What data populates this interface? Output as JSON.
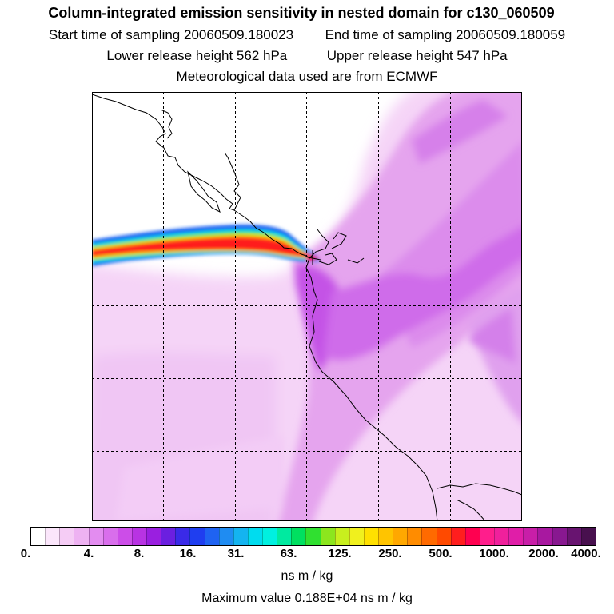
{
  "header": {
    "title": "Column-integrated emission sensitivity in nested domain for c130_060509",
    "start_label": "Start time of sampling",
    "start_value": "20060509.180023",
    "end_label": "End time of sampling",
    "end_value": "20060509.180059",
    "lower_label": "Lower release height",
    "lower_value": "562 hPa",
    "upper_label": "Upper release height",
    "upper_value": "547 hPa",
    "met_line": "Meteorological data used are from ECMWF"
  },
  "legend": {
    "tick_labels": [
      "0.",
      "4.",
      "8.",
      "16.",
      "31.",
      "63.",
      "125.",
      "250.",
      "500.",
      "1000.",
      "2000.",
      "4000."
    ],
    "units": "ns m / kg",
    "max_label": "Maximum value",
    "max_value": "0.188E+04 ns m / kg"
  },
  "colors": {
    "scale": [
      "#ffffff",
      "#fbe6fb",
      "#f5ccf5",
      "#eeb2f2",
      "#e38cf0",
      "#d96eec",
      "#cc4de8",
      "#b833e3",
      "#9a1fe0",
      "#6b1fe0",
      "#3a2ae8",
      "#1f3ef0",
      "#1f63f2",
      "#1f8cf2",
      "#14b4f0",
      "#00dcef",
      "#00f0e0",
      "#00eaa0",
      "#00e060",
      "#30e030",
      "#8ce61e",
      "#c8ef1e",
      "#f0f01e",
      "#ffe000",
      "#ffc400",
      "#ffa800",
      "#ff8c00",
      "#ff6a00",
      "#ff4a00",
      "#ff1e1e",
      "#ff0050",
      "#ff1e8c",
      "#f0209c",
      "#e01ea8",
      "#c81ea8",
      "#a818a0",
      "#881890",
      "#681470",
      "#48104e"
    ],
    "background_plume": "#f4d4f6",
    "coast": "#000000"
  }
}
